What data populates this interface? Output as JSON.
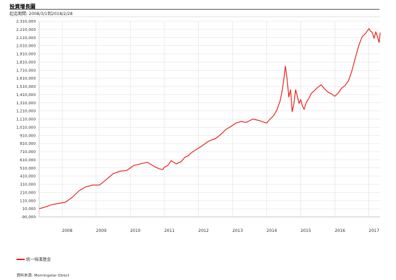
{
  "header": {
    "title": "投資增長圖",
    "period_label": "起迄期間: 2008/3/1到2018/2/28"
  },
  "legend": {
    "label": "統一強漢基金"
  },
  "source": {
    "text": "資料來源: Morningstar Direct"
  },
  "colors": {
    "series": "#e8211b",
    "grid": "#dedede"
  },
  "chart_data": {
    "type": "line",
    "title": "投資增長圖",
    "xlabel": "",
    "ylabel": "",
    "xlim": [
      2007.33,
      2017.33
    ],
    "ylim": [
      -90000,
      2310000
    ],
    "x_ticks": [
      "2008",
      "2009",
      "2010",
      "2011",
      "2012",
      "2013",
      "2014",
      "2015",
      "2016",
      "2017"
    ],
    "y_ticks": [
      "2,310,000",
      "2,210,000",
      "2,110,000",
      "2,010,000",
      "1,910,000",
      "1,810,000",
      "1,710,000",
      "1,610,000",
      "1,510,000",
      "1,410,000",
      "1,310,000",
      "1,210,000",
      "1,110,000",
      "1,010,000",
      "910,000",
      "810,000",
      "710,000",
      "610,000",
      "510,000",
      "410,000",
      "310,000",
      "210,000",
      "110,000",
      "10,000",
      "-90,000"
    ],
    "grid": true,
    "legend_position": "bottom-left",
    "series": [
      {
        "name": "統一強漢基金",
        "x": [
          2007.33,
          2007.5,
          2007.7,
          2007.9,
          2008.1,
          2008.3,
          2008.5,
          2008.7,
          2008.9,
          2009.1,
          2009.3,
          2009.5,
          2009.7,
          2009.9,
          2010.1,
          2010.3,
          2010.5,
          2010.7,
          2010.85,
          2010.95,
          2011.0,
          2011.1,
          2011.2,
          2011.35,
          2011.5,
          2011.6,
          2011.7,
          2011.8,
          2011.95,
          2012.1,
          2012.3,
          2012.5,
          2012.65,
          2012.8,
          2012.95,
          2013.1,
          2013.25,
          2013.4,
          2013.6,
          2013.8,
          2014.0,
          2014.1,
          2014.2,
          2014.3,
          2014.4,
          2014.45,
          2014.5,
          2014.55,
          2014.6,
          2014.65,
          2014.7,
          2014.75,
          2014.8,
          2014.85,
          2014.9,
          2014.95,
          2015.0,
          2015.05,
          2015.1,
          2015.15,
          2015.2,
          2015.25,
          2015.3,
          2015.4,
          2015.5,
          2015.6,
          2015.7,
          2015.8,
          2015.9,
          2016.0,
          2016.1,
          2016.2,
          2016.3,
          2016.4,
          2016.5,
          2016.6,
          2016.7,
          2016.8,
          2016.9,
          2017.0,
          2017.05,
          2017.1,
          2017.15,
          2017.2,
          2017.25,
          2017.3,
          2017.33
        ],
        "y": [
          10000,
          30000,
          60000,
          75000,
          90000,
          150000,
          230000,
          280000,
          300000,
          300000,
          370000,
          440000,
          470000,
          480000,
          540000,
          560000,
          580000,
          530000,
          500000,
          490000,
          520000,
          540000,
          600000,
          560000,
          590000,
          640000,
          660000,
          700000,
          740000,
          780000,
          840000,
          870000,
          920000,
          980000,
          1020000,
          1060000,
          1080000,
          1070000,
          1110000,
          1090000,
          1060000,
          1110000,
          1150000,
          1220000,
          1340000,
          1450000,
          1580000,
          1760000,
          1600000,
          1380000,
          1470000,
          1200000,
          1300000,
          1470000,
          1390000,
          1300000,
          1350000,
          1270000,
          1230000,
          1300000,
          1340000,
          1370000,
          1420000,
          1460000,
          1500000,
          1530000,
          1480000,
          1440000,
          1420000,
          1390000,
          1430000,
          1490000,
          1520000,
          1580000,
          1700000,
          1860000,
          2010000,
          2120000,
          2160000,
          2220000,
          2190000,
          2170000,
          2100000,
          2180000,
          2120000,
          2050000,
          2170000
        ]
      }
    ]
  }
}
